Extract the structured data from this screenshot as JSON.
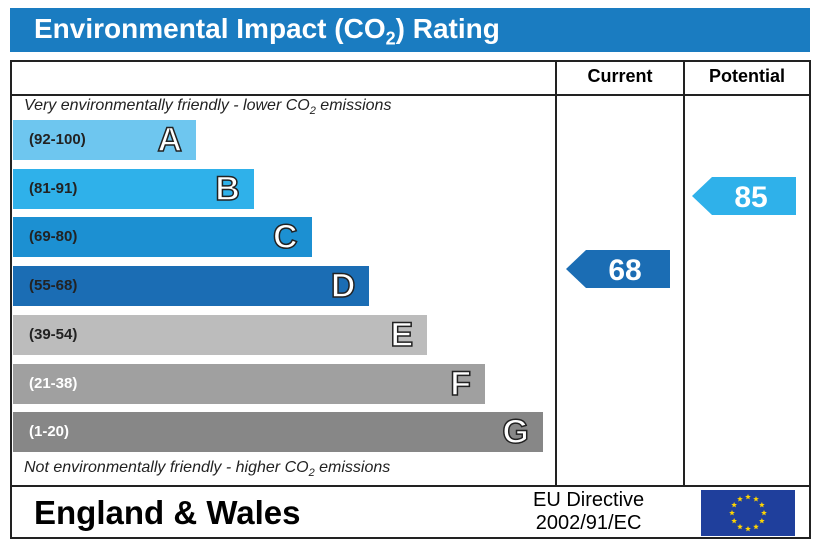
{
  "header": {
    "title": [
      "Environmental Impact (CO",
      "2",
      ") Rating"
    ]
  },
  "columns": {
    "current": "Current",
    "potential": "Potential"
  },
  "top_note": [
    "Very environmentally friendly - lower CO",
    "2",
    " emissions"
  ],
  "bottom_note": [
    "Not environmentally friendly - higher CO",
    "2",
    " emissions"
  ],
  "bands": [
    {
      "range": "(92-100)",
      "letter": "A",
      "color": "#6ec6ef"
    },
    {
      "range": "(81-91)",
      "letter": "B",
      "color": "#2fb1ea"
    },
    {
      "range": "(69-80)",
      "letter": "C",
      "color": "#1c90d2"
    },
    {
      "range": "(55-68)",
      "letter": "D",
      "color": "#1b6db4"
    },
    {
      "range": "(39-54)",
      "letter": "E",
      "color": "#bcbcbc"
    },
    {
      "range": "(21-38)",
      "letter": "F",
      "color": "#a0a0a0"
    },
    {
      "range": "(1-20)",
      "letter": "G",
      "color": "#878787"
    }
  ],
  "current": {
    "value": "68",
    "color": "#1b6db4"
  },
  "potential": {
    "value": "85",
    "color": "#2fb1ea"
  },
  "footer": {
    "region": "England & Wales",
    "directive": [
      "EU Directive",
      "2002/91/EC"
    ]
  }
}
